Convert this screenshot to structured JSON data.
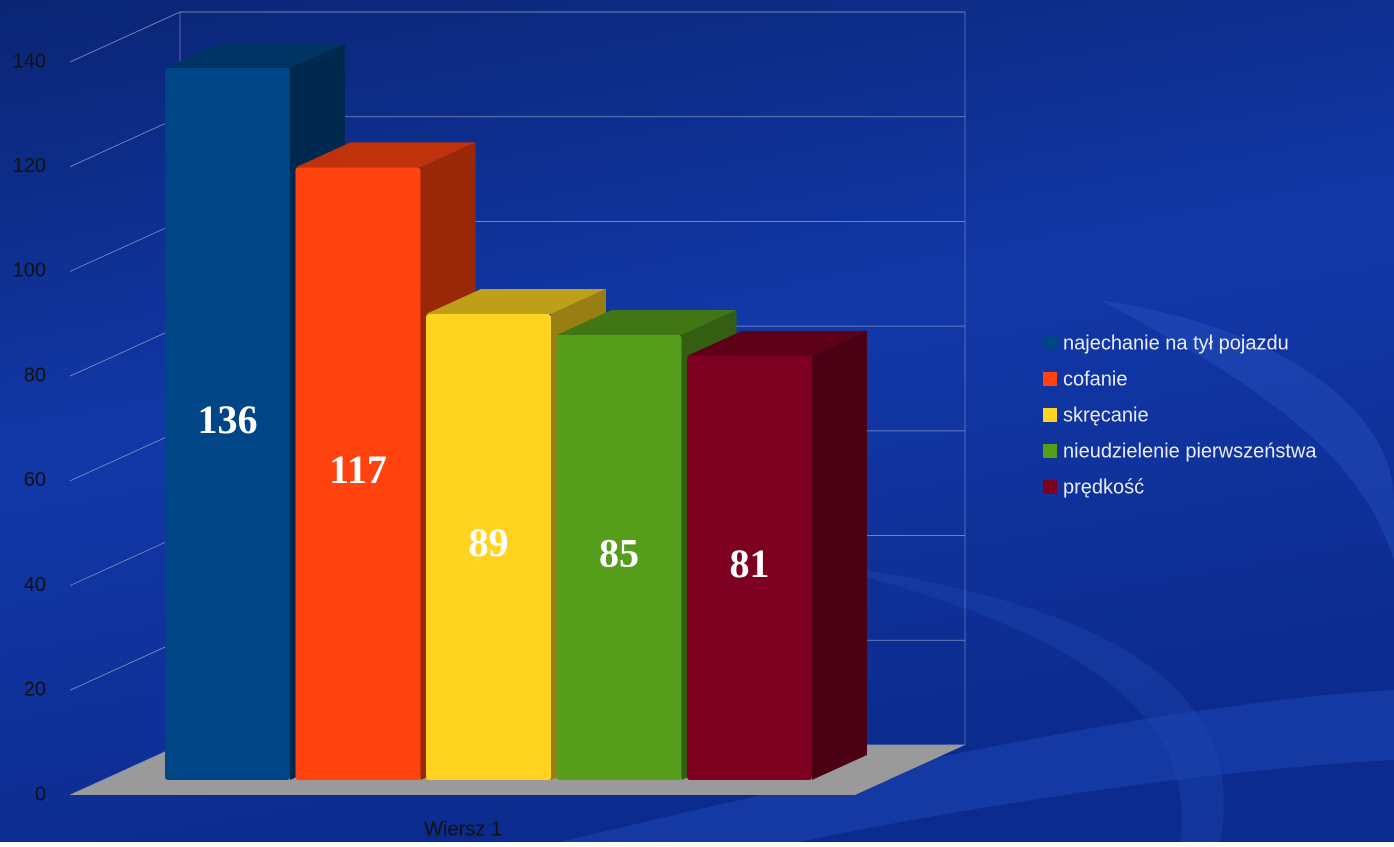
{
  "chart_data": {
    "type": "bar3d",
    "categories": [
      "Wiersz 1"
    ],
    "series": [
      {
        "name": "najechanie na tył pojazdu",
        "color": "#004586",
        "values": [
          136
        ]
      },
      {
        "name": "cofanie",
        "color": "#ff420e",
        "values": [
          117
        ]
      },
      {
        "name": "skręcanie",
        "color": "#ffd320",
        "values": [
          89
        ]
      },
      {
        "name": "nieudzielenie pierwszeństwa",
        "color": "#579d1c",
        "values": [
          85
        ]
      },
      {
        "name": "prędkość",
        "color": "#7e0021",
        "values": [
          81
        ]
      }
    ],
    "ylim": [
      0,
      140
    ],
    "yticks": [
      0,
      20,
      40,
      60,
      80,
      100,
      120,
      140
    ],
    "grid": true,
    "legend": "right",
    "data_labels": true
  }
}
